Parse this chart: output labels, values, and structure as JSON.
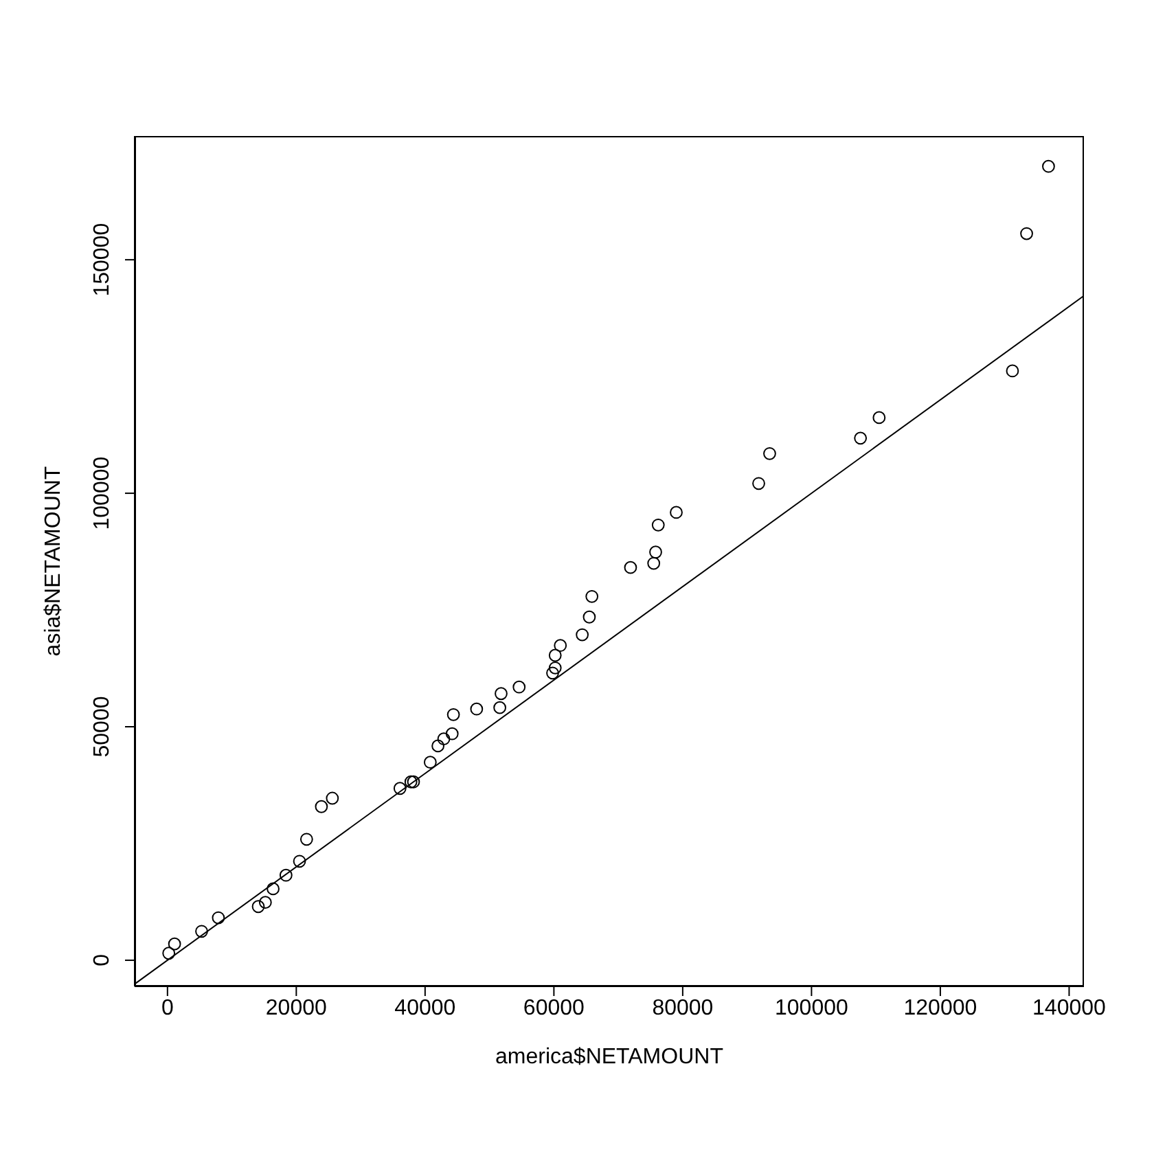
{
  "chart_data": {
    "type": "scatter",
    "xlabel": "america$NETAMOUNT",
    "ylabel": "asia$NETAMOUNT",
    "xlim": [
      -5100,
      142300
    ],
    "ylim": [
      -5600,
      176500
    ],
    "xticks": [
      0,
      20000,
      40000,
      60000,
      80000,
      100000,
      120000,
      140000
    ],
    "yticks": [
      0,
      50000,
      100000,
      150000
    ],
    "series": [
      {
        "marker": "circle",
        "color": "#000000",
        "x": [
          200,
          1100,
          5300,
          7900,
          14100,
          15200,
          16400,
          18400,
          20500,
          21600,
          23900,
          25600,
          36100,
          37800,
          38200,
          40800,
          42000,
          42900,
          44200,
          44400,
          48000,
          51600,
          51800,
          54600,
          59800,
          60200,
          60200,
          61000,
          64400,
          65500,
          65900,
          71900,
          75500,
          75800,
          76200,
          79000,
          91800,
          93500,
          107600,
          110500,
          131200,
          133400,
          136800
        ],
        "values": [
          1500,
          3500,
          6200,
          9100,
          11500,
          12400,
          15300,
          18200,
          21200,
          25900,
          32900,
          34700,
          36800,
          38200,
          38200,
          42400,
          45900,
          47400,
          48500,
          52600,
          53800,
          54100,
          57100,
          58500,
          61500,
          62600,
          65300,
          67400,
          69700,
          73500,
          77900,
          84100,
          85000,
          87400,
          93200,
          95900,
          102100,
          108500,
          111800,
          116200,
          126200,
          155600,
          170000
        ]
      },
      {
        "type": "line",
        "color": "#000000",
        "x": [
          -5100,
          142300
        ],
        "values": [
          -5100,
          142300
        ]
      }
    ]
  }
}
